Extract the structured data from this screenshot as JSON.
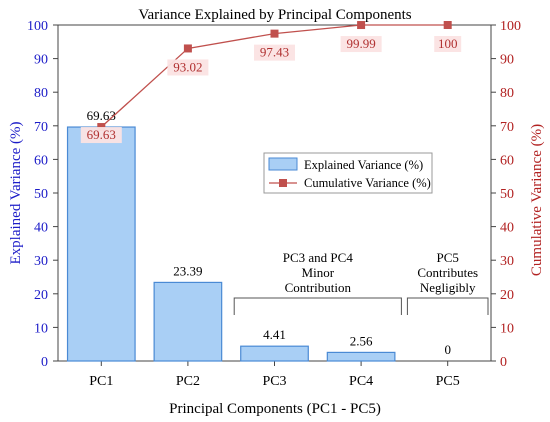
{
  "chart_data": {
    "type": "bar",
    "title": "Variance Explained by Principal Components",
    "xlabel": "Principal Components (PC1 - PC5)",
    "ylabel": "Explained Variance (%)",
    "ylabel_right": "Cumulative Variance (%)",
    "categories": [
      "PC1",
      "PC2",
      "PC3",
      "PC4",
      "PC5"
    ],
    "ylim": [
      0,
      100
    ],
    "y2lim": [
      0,
      100
    ],
    "yticks": [
      0,
      10,
      20,
      30,
      40,
      50,
      60,
      70,
      80,
      90,
      100
    ],
    "series": [
      {
        "name": "Explained Variance (%)",
        "type": "bar",
        "axis": "left",
        "values": [
          69.63,
          23.39,
          4.41,
          2.56,
          0
        ],
        "labels": [
          "69.63",
          "23.39",
          "4.41",
          "2.56",
          "0"
        ]
      },
      {
        "name": "Cumulative Variance (%)",
        "type": "line",
        "axis": "right",
        "values": [
          69.63,
          93.02,
          97.43,
          99.99,
          100
        ],
        "labels": [
          "69.63",
          "93.02",
          "97.43",
          "99.99",
          "100"
        ]
      }
    ],
    "annotations": [
      {
        "lines": [
          "PC3 and PC4",
          "Minor",
          "Contribution"
        ],
        "span": [
          "PC3",
          "PC4"
        ]
      },
      {
        "lines": [
          "PC5",
          "Contributes",
          "Negligibly"
        ],
        "span": [
          "PC5",
          "PC5"
        ]
      }
    ],
    "legend_position": "center-right",
    "grid": false,
    "colors": {
      "bar_fill": "#a9cff5",
      "bar_edge": "#4a8ad4",
      "line": "#c0504d",
      "left_axis": "#1c1cc8",
      "right_axis": "#b22222",
      "annotation": "#555555"
    }
  }
}
